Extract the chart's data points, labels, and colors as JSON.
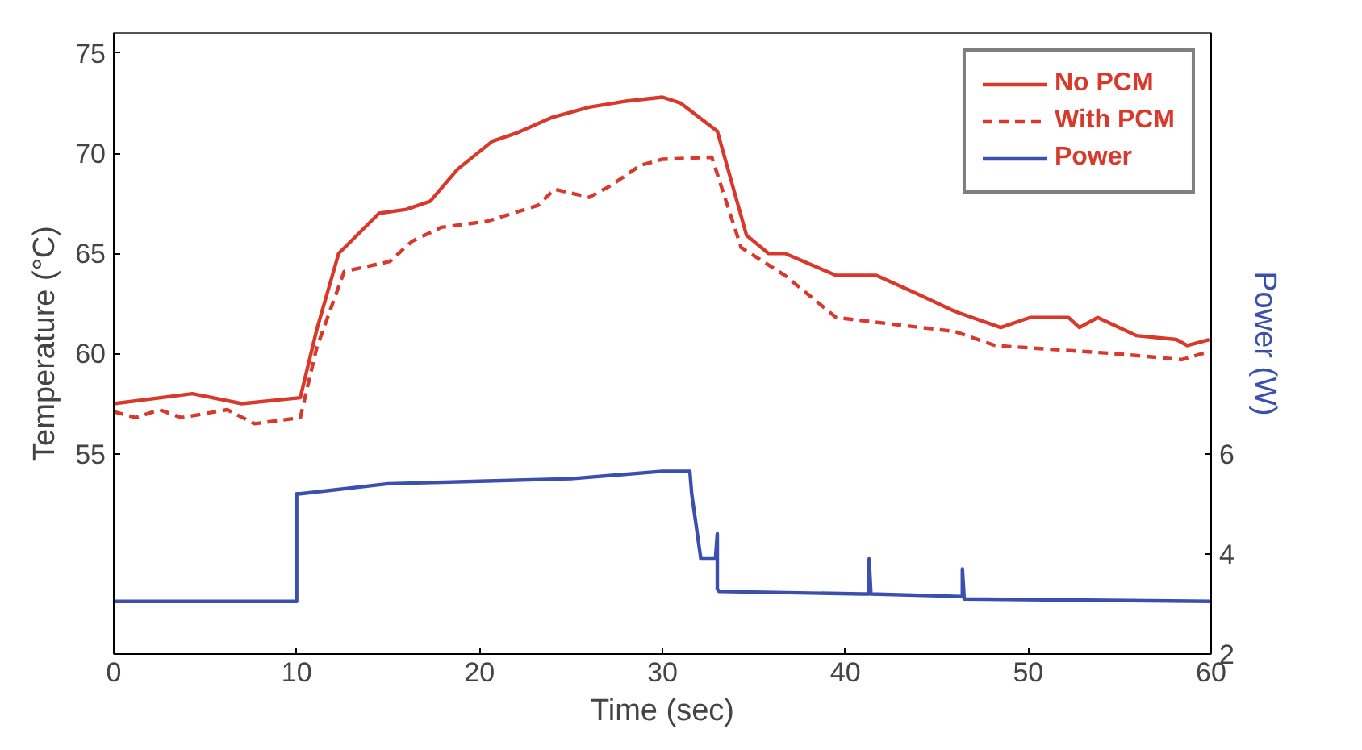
{
  "chart_data": {
    "type": "line",
    "xlabel": "Time (sec)",
    "ylabel": "Temperature (°C)",
    "y2label": "Power (W)",
    "xlim": [
      0,
      60
    ],
    "xticks": [
      0,
      10,
      20,
      30,
      40,
      50,
      60
    ],
    "ylim": [
      45,
      76
    ],
    "yticks": [
      55,
      60,
      65,
      70,
      75
    ],
    "y2lim": [
      2,
      14.4
    ],
    "y2ticks": [
      2,
      4,
      6
    ],
    "grid": false,
    "legend": "top right",
    "series": [
      {
        "name": "No PCM",
        "color": "#d8392b",
        "line_style": "solid",
        "x": [
          0,
          4.3,
          7,
          10.2,
          11.1,
          12.3,
          14.5,
          16,
          17.3,
          18.8,
          20.7,
          22,
          24,
          26,
          28,
          30,
          31,
          33,
          34.6,
          35.8,
          36.7,
          39.5,
          41.7,
          43.9,
          46,
          48.5,
          50.1,
          52.2,
          52.8,
          53.8,
          55.9,
          58.1,
          58.7,
          59.9
        ],
        "values": [
          57.5,
          58.0,
          57.5,
          57.8,
          61.2,
          65.0,
          67.0,
          67.2,
          67.6,
          69.2,
          70.6,
          71.0,
          71.8,
          72.3,
          72.6,
          72.8,
          72.5,
          71.1,
          65.9,
          65.0,
          65.0,
          63.9,
          63.9,
          63.0,
          62.1,
          61.3,
          61.8,
          61.8,
          61.3,
          61.8,
          60.9,
          60.7,
          60.4,
          60.7
        ]
      },
      {
        "name": "With PCM",
        "color": "#d8392b",
        "line_style": "dashed",
        "x": [
          0,
          1.2,
          2.5,
          3.7,
          6.2,
          7.7,
          10.2,
          11.1,
          12.6,
          15.1,
          16.3,
          17.9,
          20.4,
          23.2,
          24.1,
          26,
          27.2,
          28.8,
          30,
          32.7,
          34.3,
          36.7,
          39.5,
          46,
          48.2,
          54.7,
          58.4,
          59.9
        ],
        "values": [
          57.1,
          56.8,
          57.2,
          56.8,
          57.2,
          56.5,
          56.8,
          60.3,
          64.1,
          64.6,
          65.6,
          66.3,
          66.6,
          67.4,
          68.2,
          67.8,
          68.4,
          69.4,
          69.7,
          69.8,
          65.3,
          63.9,
          61.8,
          61.1,
          60.4,
          60.0,
          59.7,
          60.1
        ]
      },
      {
        "name": "Power",
        "color": "#3b4fae",
        "line_style": "solid",
        "axis": "y2",
        "x": [
          0,
          10,
          10,
          10.2,
          15,
          20,
          25,
          30,
          31.5,
          31.6,
          32.1,
          32.9,
          33,
          33,
          33.1,
          40.9,
          41.3,
          41.3,
          41.4,
          46.3,
          46.4,
          46.4,
          46.5,
          60
        ],
        "values": [
          3.05,
          3.05,
          5.2,
          5.2,
          5.4,
          5.45,
          5.5,
          5.65,
          5.65,
          5.2,
          3.9,
          3.9,
          4.4,
          3.3,
          3.25,
          3.2,
          3.2,
          3.9,
          3.2,
          3.15,
          3.15,
          3.7,
          3.1,
          3.05
        ]
      }
    ]
  }
}
